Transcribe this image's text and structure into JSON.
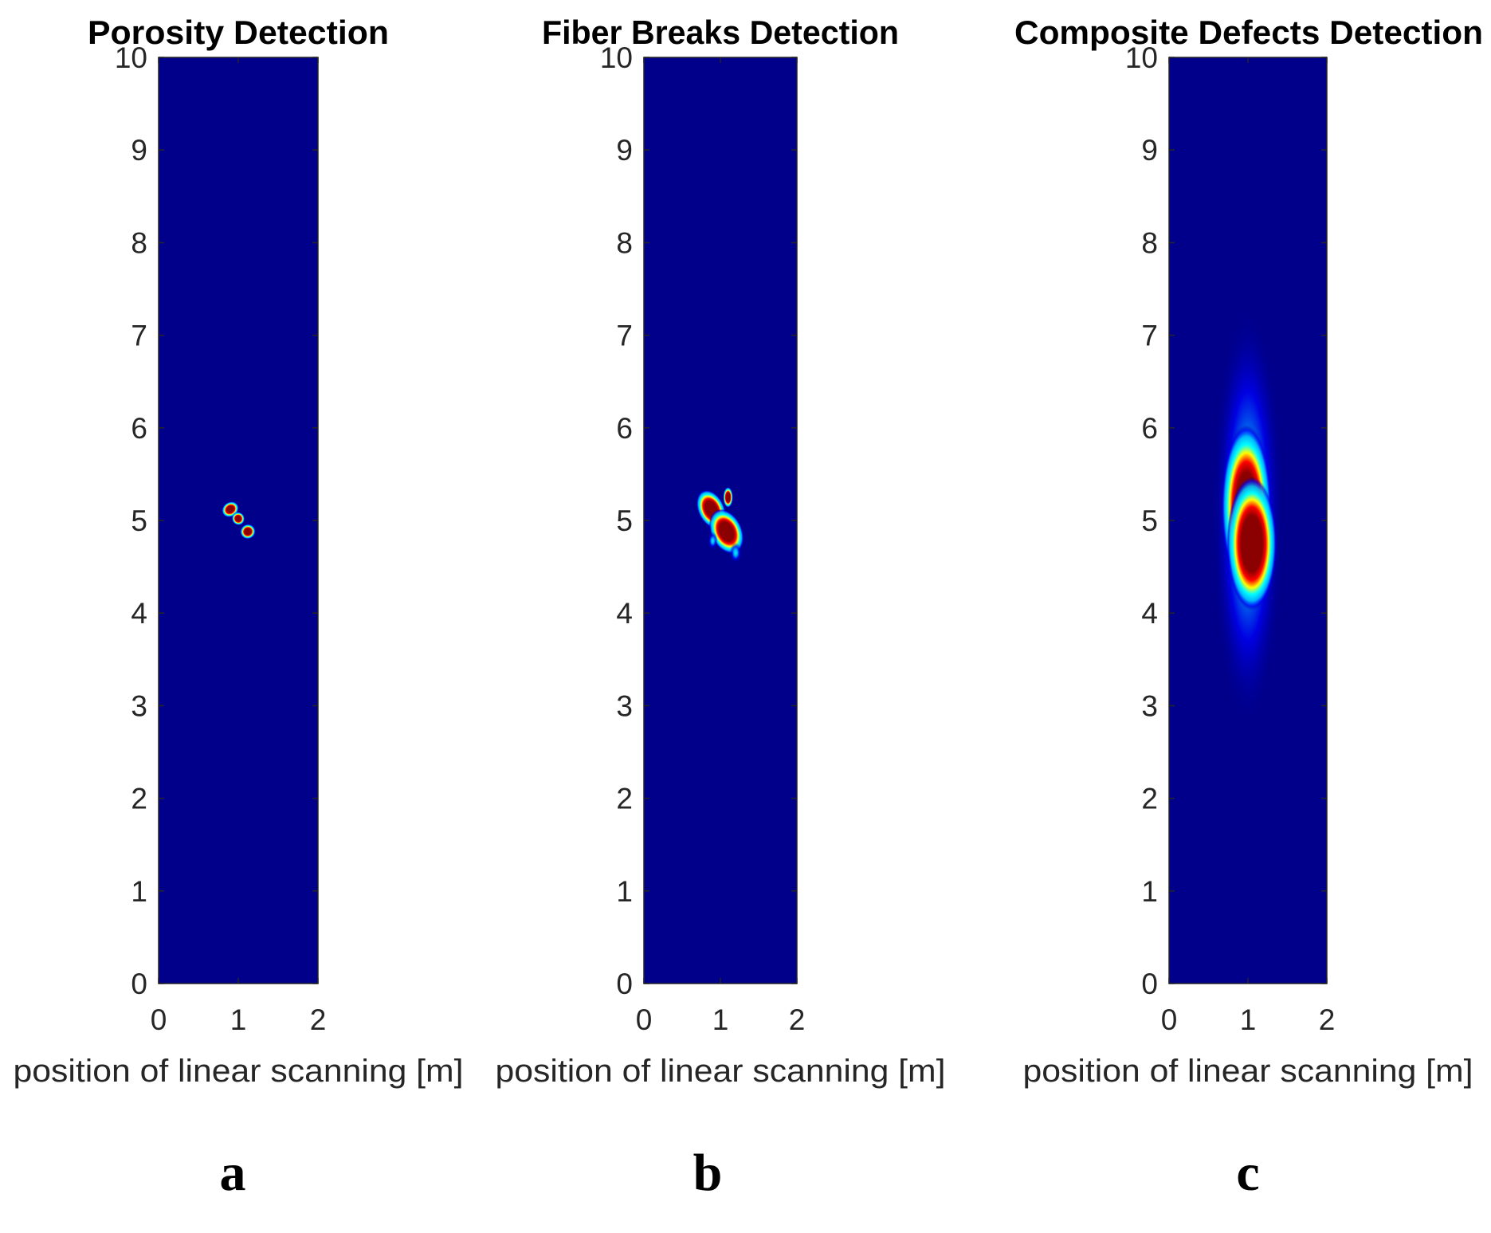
{
  "figure": {
    "panel_letters": [
      "a",
      "b",
      "c"
    ]
  },
  "colors": {
    "background": "#00008b",
    "colormap": [
      "#00008b",
      "#0000ff",
      "#00bfff",
      "#00ffff",
      "#ffff00",
      "#ff0000",
      "#8b0000"
    ]
  },
  "chart_data": [
    {
      "type": "heatmap",
      "title": "Porosity Detection",
      "xlabel": "position of linear scanning [m]",
      "ylabel": "",
      "xlim": [
        0,
        2
      ],
      "ylim": [
        0,
        10
      ],
      "xticks": [
        0,
        1,
        2
      ],
      "yticks": [
        0,
        1,
        2,
        3,
        4,
        5,
        6,
        7,
        8,
        9,
        10
      ],
      "colormap": "jet",
      "hotspots": [
        {
          "x": 0.9,
          "y": 5.12,
          "sx": 0.07,
          "sy": 0.05,
          "rot": -35,
          "intensity": 1.0
        },
        {
          "x": 1.0,
          "y": 5.02,
          "sx": 0.05,
          "sy": 0.045,
          "rot": -30,
          "intensity": 0.95
        },
        {
          "x": 1.12,
          "y": 4.88,
          "sx": 0.06,
          "sy": 0.05,
          "rot": -30,
          "intensity": 1.0
        }
      ]
    },
    {
      "type": "heatmap",
      "title": "Fiber Breaks Detection",
      "xlabel": "position of linear scanning [m]",
      "ylabel": "",
      "xlim": [
        0,
        2
      ],
      "ylim": [
        0,
        10
      ],
      "xticks": [
        0,
        1,
        2
      ],
      "yticks": [
        0,
        1,
        2,
        3,
        4,
        5,
        6,
        7,
        8,
        9,
        10
      ],
      "colormap": "jet",
      "hotspots": [
        {
          "x": 0.88,
          "y": 5.12,
          "sx": 0.11,
          "sy": 0.14,
          "rot": -25,
          "intensity": 1.0
        },
        {
          "x": 1.08,
          "y": 4.88,
          "sx": 0.13,
          "sy": 0.16,
          "rot": -25,
          "intensity": 1.0
        },
        {
          "x": 1.1,
          "y": 5.25,
          "sx": 0.04,
          "sy": 0.07,
          "rot": 0,
          "intensity": 0.9
        },
        {
          "x": 0.9,
          "y": 4.78,
          "sx": 0.04,
          "sy": 0.06,
          "rot": 0,
          "intensity": 0.85
        },
        {
          "x": 1.2,
          "y": 4.65,
          "sx": 0.05,
          "sy": 0.07,
          "rot": 0,
          "intensity": 0.8
        }
      ]
    },
    {
      "type": "heatmap",
      "title": "Composite Defects Detection",
      "xlabel": "position of linear scanning [m]",
      "ylabel": "",
      "xlim": [
        0,
        2
      ],
      "ylim": [
        0,
        10
      ],
      "xticks": [
        0,
        1,
        2
      ],
      "yticks": [
        0,
        1,
        2,
        3,
        4,
        5,
        6,
        7,
        8,
        9,
        10
      ],
      "colormap": "jet",
      "hotspots": [
        {
          "x": 1.0,
          "y": 5.05,
          "sx": 0.28,
          "sy": 1.4,
          "rot": 0,
          "intensity": 0.55
        },
        {
          "x": 0.98,
          "y": 5.15,
          "sx": 0.2,
          "sy": 0.55,
          "rot": 0,
          "intensity": 1.0
        },
        {
          "x": 1.05,
          "y": 4.75,
          "sx": 0.2,
          "sy": 0.45,
          "rot": 0,
          "intensity": 1.0
        }
      ]
    }
  ]
}
